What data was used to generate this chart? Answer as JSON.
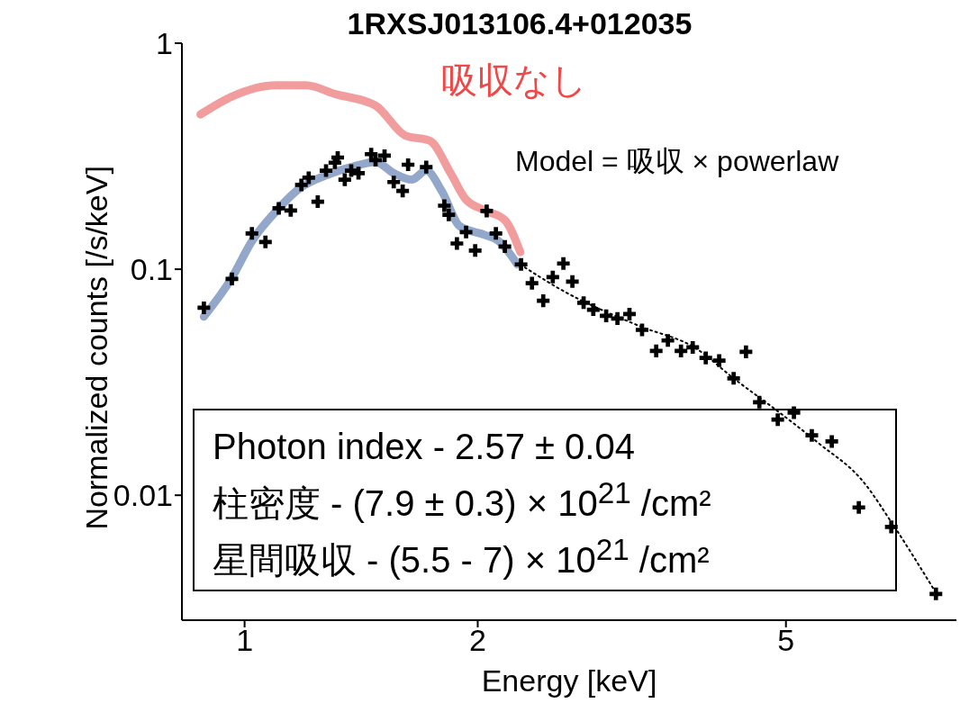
{
  "chart_data": {
    "type": "scatter",
    "title": "1RXSJ013106.4+012035",
    "xlabel": "Energy [keV]",
    "ylabel": "Normalized counts [/s/keV]",
    "log": "xy",
    "xlim": [
      0.83,
      8.3
    ],
    "xticks": [
      1,
      2,
      5
    ],
    "ylim": [
      0.0028,
      1
    ],
    "yticks": [
      1,
      0.1,
      0.01
    ],
    "grid": false,
    "legend": false,
    "annotations": [
      "Model = 吸収 × powerlaw",
      "Photon index - 2.57 ± 0.04",
      "柱密度 - (7.9 ± 0.3) × 10$^{21}$ /cm²",
      "星間吸収 - (5.5 - 7) × 10$^{21}$ /cm²"
    ],
    "series": [
      {
        "type": "line",
        "color": "#7f98c0",
        "marker": "none",
        "line_style": "solid",
        "x": [
          0.886,
          0.961,
          1.022,
          1.107,
          1.178,
          1.277,
          1.373,
          1.476,
          1.558,
          1.643,
          1.716,
          1.797,
          1.896,
          2.04,
          2.13,
          2.25
        ],
        "values": [
          0.0617,
          0.0906,
          0.133,
          0.186,
          0.228,
          0.261,
          0.283,
          0.298,
          0.266,
          0.249,
          0.273,
          0.222,
          0.155,
          0.142,
          0.133,
          0.105
        ]
      },
      {
        "type": "line",
        "name": "吸収なし",
        "color": "#f08c8c",
        "marker": "none",
        "line_style": "solid",
        "x": [
          0.877,
          0.961,
          1.099,
          1.2,
          1.311,
          1.476,
          1.613,
          1.735,
          1.845,
          1.932,
          2.054,
          2.168,
          2.27
        ],
        "values": [
          0.484,
          0.579,
          0.651,
          0.651,
          0.595,
          0.53,
          0.39,
          0.37,
          0.266,
          0.203,
          0.181,
          0.165,
          0.119
        ]
      },
      {
        "type": "line",
        "color": "#000000",
        "marker": "none",
        "line_style": "dotted",
        "x": [
          2.27,
          2.57,
          3.22,
          3.84,
          4.28,
          4.82,
          5.51,
          6.29,
          6.88,
          7.81
        ],
        "values": [
          0.105,
          0.0807,
          0.0564,
          0.0443,
          0.0329,
          0.0243,
          0.017,
          0.0115,
          0.00738,
          0.0037
        ]
      },
      {
        "color": "#000000",
        "marker": "cross",
        "x": [
          0.886,
          0.963,
          1.022,
          1.064,
          1.107,
          1.147,
          1.184,
          1.21,
          1.243,
          1.274,
          1.308,
          1.319,
          1.347,
          1.373,
          1.403,
          1.457,
          1.476,
          1.516,
          1.558,
          1.6,
          1.626,
          1.716,
          1.811,
          1.835,
          1.88,
          1.932,
          1.985,
          2.054,
          2.111,
          2.168,
          2.275,
          2.35,
          2.43,
          2.5,
          2.58,
          2.65,
          2.74,
          2.82,
          2.93,
          3.03,
          3.14,
          3.26,
          3.4,
          3.52,
          3.66,
          3.79,
          3.94,
          4.1,
          4.28,
          4.44,
          4.62,
          4.88,
          5.12,
          5.4,
          5.73,
          6.21,
          6.84,
          7.81
        ],
        "values": [
          0.0675,
          0.0906,
          0.144,
          0.132,
          0.186,
          0.182,
          0.236,
          0.254,
          0.199,
          0.273,
          0.296,
          0.312,
          0.249,
          0.273,
          0.266,
          0.323,
          0.304,
          0.318,
          0.243,
          0.222,
          0.29,
          0.283,
          0.191,
          0.174,
          0.13,
          0.146,
          0.121,
          0.181,
          0.144,
          0.126,
          0.105,
          0.0867,
          0.0725,
          0.0923,
          0.106,
          0.0882,
          0.0711,
          0.0662,
          0.0622,
          0.0605,
          0.0633,
          0.0539,
          0.0435,
          0.0484,
          0.0435,
          0.0451,
          0.0405,
          0.0394,
          0.0329,
          0.0431,
          0.0258,
          0.0216,
          0.0232,
          0.0184,
          0.0173,
          0.00883,
          0.00724,
          0.00366
        ]
      }
    ]
  }
}
